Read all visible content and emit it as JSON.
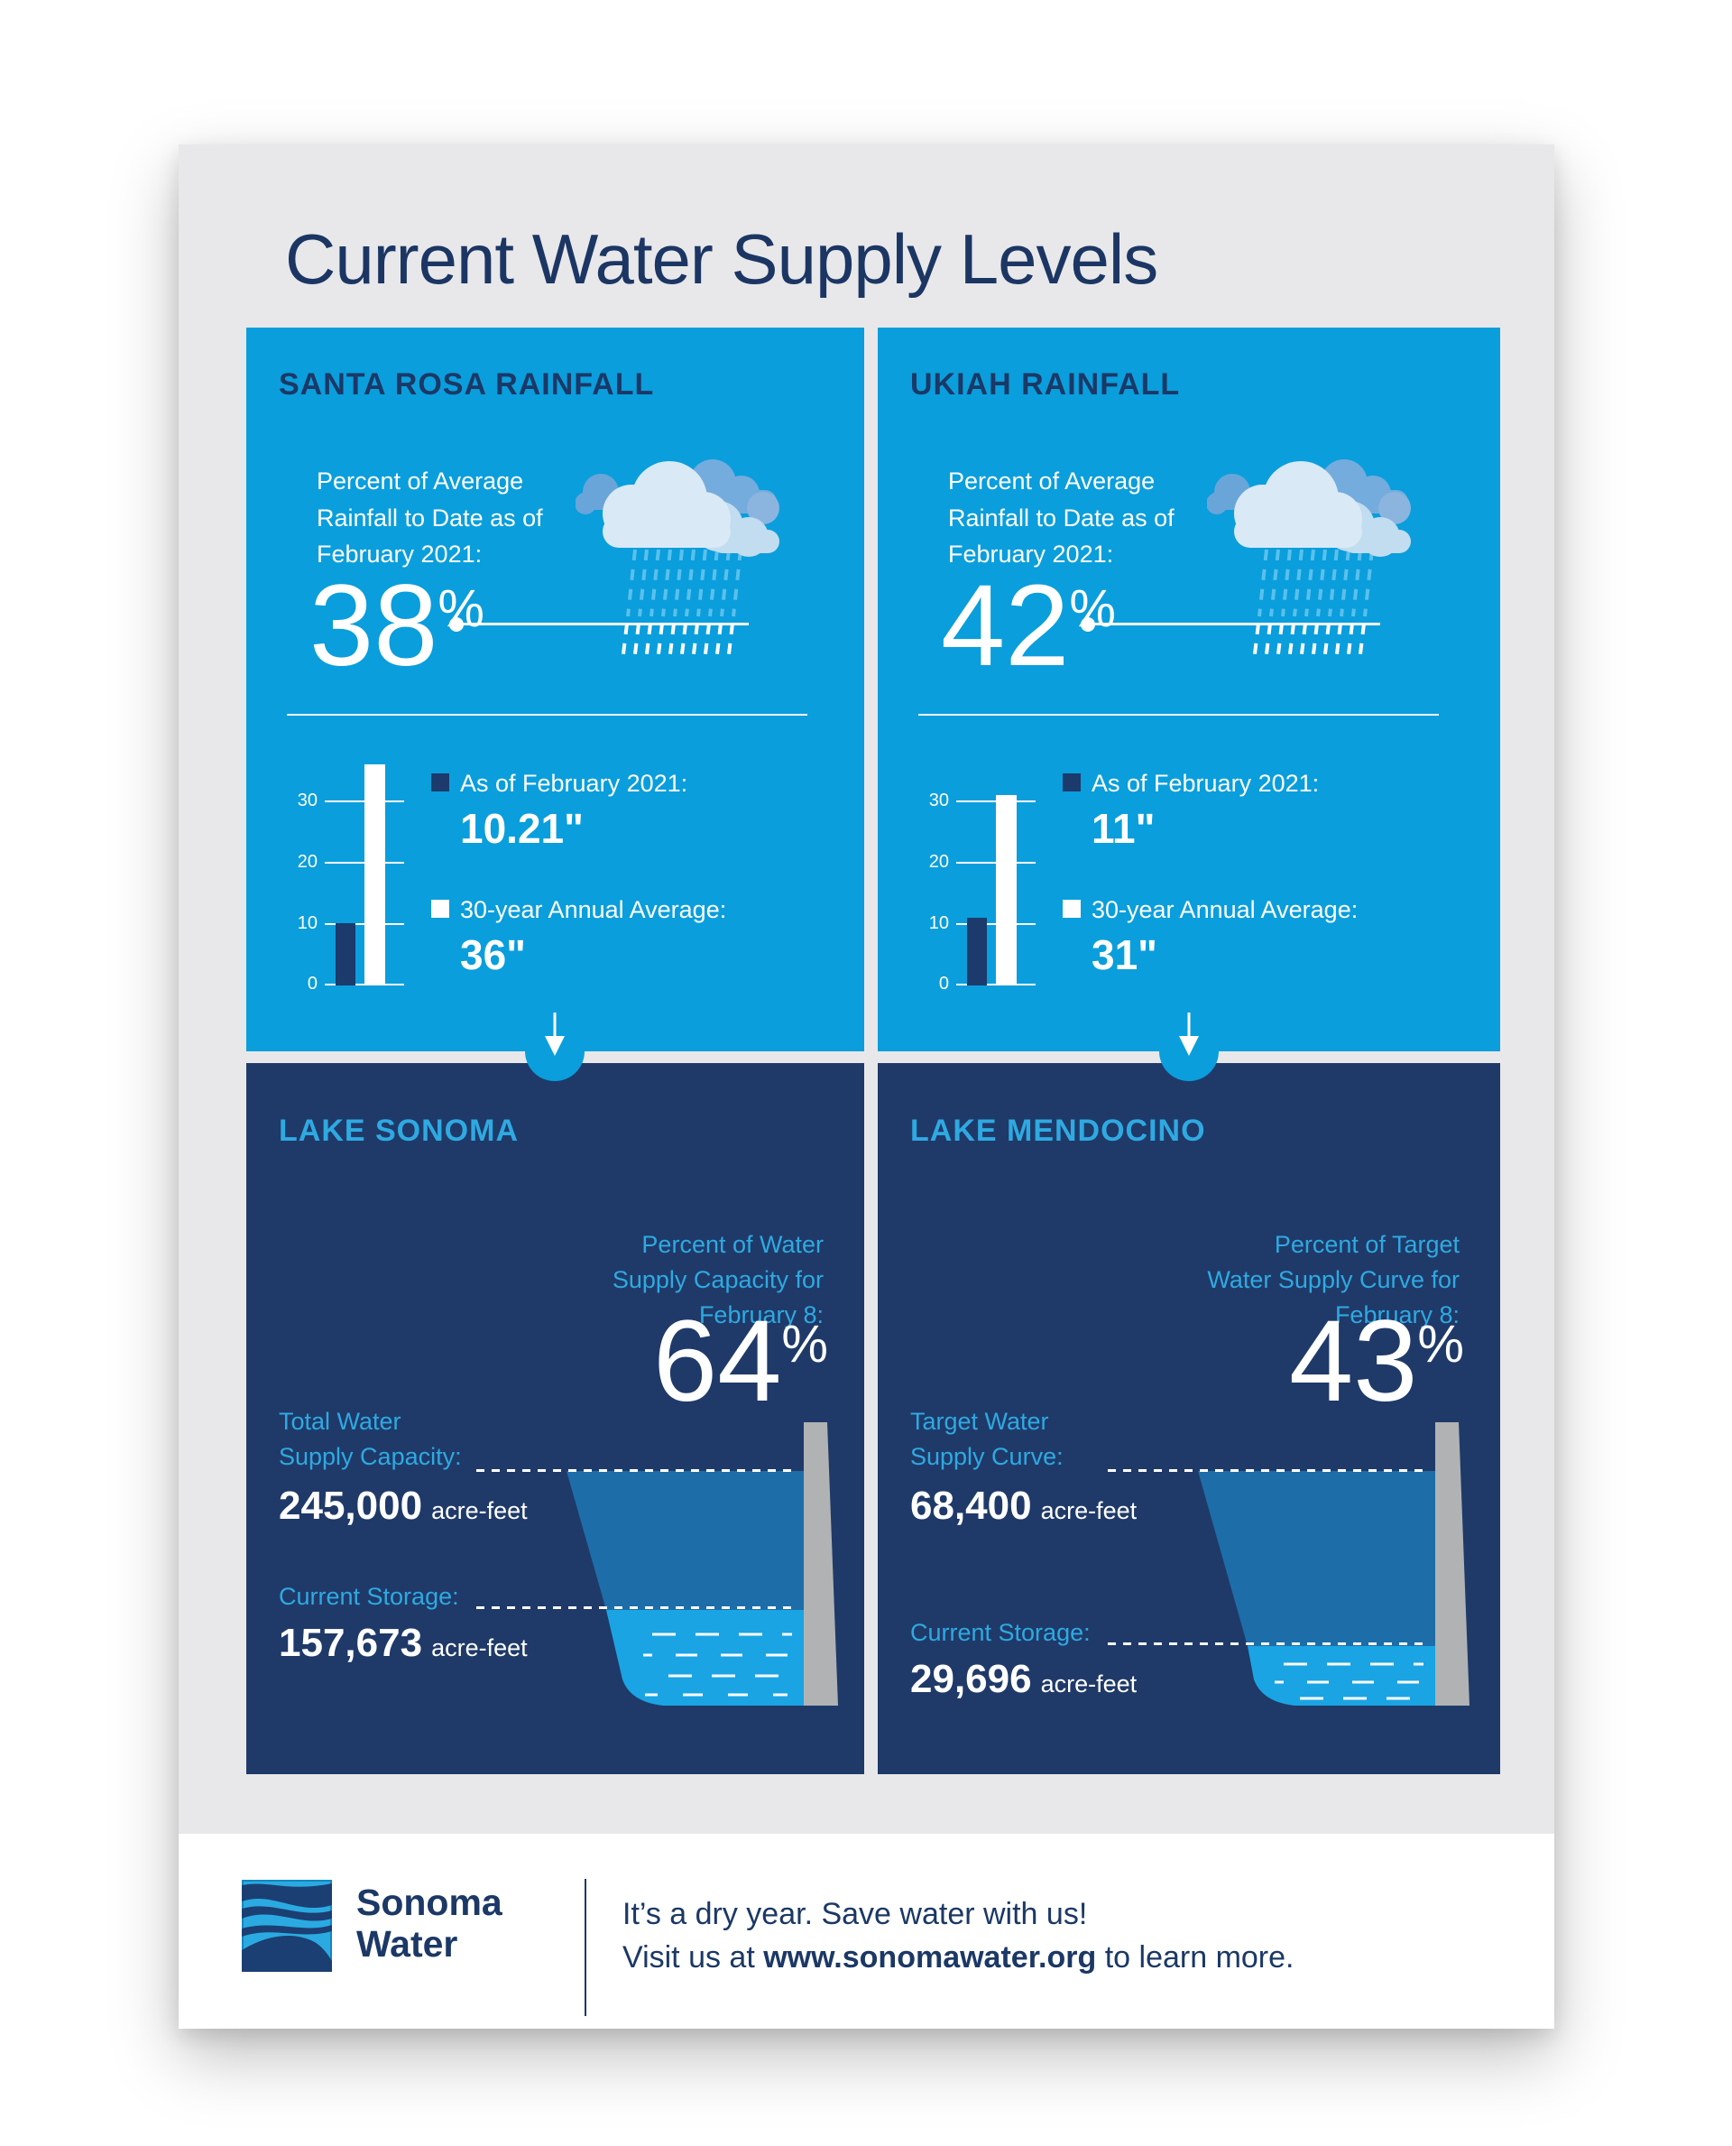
{
  "title": "Current Water Supply Levels",
  "colors": {
    "panel_blue": "#0A9EDC",
    "panel_navy": "#1F3A69",
    "accent_cyan": "#2FA9E1",
    "title_navy": "#1C3664",
    "bar_navy": "#1C3A6B",
    "water_blue": "#1AA4E3",
    "reservoir_fill": "#1D6DA9",
    "dam_gray": "#B0B2B4",
    "poster_gray": "#E8E8EA"
  },
  "santa_rosa": {
    "heading": "SANTA ROSA RAINFALL",
    "desc_lines": [
      "Percent of Average",
      "Rainfall to Date as of",
      "February 2021:"
    ],
    "percent_value": "38",
    "percent_sign": "%",
    "legend": [
      {
        "label": "As of February 2021:",
        "value": "10.21\""
      },
      {
        "label": "30-year Annual Average:",
        "value": "36\""
      }
    ]
  },
  "ukiah": {
    "heading": "UKIAH RAINFALL",
    "desc_lines": [
      "Percent of Average",
      "Rainfall to Date as of",
      "February 2021:"
    ],
    "percent_value": "42",
    "percent_sign": "%",
    "legend": [
      {
        "label": "As of February 2021:",
        "value": "11\""
      },
      {
        "label": "30-year Annual Average:",
        "value": "31\""
      }
    ]
  },
  "lake_sonoma": {
    "heading": "LAKE SONOMA",
    "desc_lines": [
      "Percent of Water",
      "Supply Capacity for",
      "February 8:"
    ],
    "percent_value": "64",
    "percent_sign": "%",
    "capacity_label_lines": [
      "Total Water",
      "Supply Capacity:"
    ],
    "capacity_value": "245,000",
    "capacity_unit": "acre-feet",
    "storage_label": "Current Storage:",
    "storage_value": "157,673",
    "storage_unit": "acre-feet"
  },
  "lake_mendocino": {
    "heading": "LAKE MENDOCINO",
    "desc_lines": [
      "Percent of Target",
      "Water Supply Curve for",
      "February 8:"
    ],
    "percent_value": "43",
    "percent_sign": "%",
    "capacity_label_lines": [
      "Target Water",
      "Supply Curve:"
    ],
    "capacity_value": "68,400",
    "capacity_unit": "acre-feet",
    "storage_label": "Current Storage:",
    "storage_value": "29,696",
    "storage_unit": "acre-feet"
  },
  "footer": {
    "logo_word1": "Sonoma",
    "logo_word2": "Water",
    "tagline_line1": "It’s a dry year. Save water with us!",
    "tagline_line2_prefix": "Visit us at ",
    "tagline_url": "www.sonomawater.org",
    "tagline_line2_suffix": " to learn more."
  },
  "chart_data": [
    {
      "type": "bar",
      "title": "Santa Rosa Rainfall",
      "ylabel": "inches",
      "categories": [
        "As of February 2021",
        "30-year Annual Average"
      ],
      "values": [
        10.21,
        36
      ],
      "yticks": [
        0,
        10,
        20,
        30
      ],
      "ylim": [
        0,
        36
      ],
      "bar_colors": [
        "#1C3A6B",
        "#FFFFFF"
      ],
      "grid": true,
      "percent_of_average_to_date": 38
    },
    {
      "type": "bar",
      "title": "Ukiah Rainfall",
      "ylabel": "inches",
      "categories": [
        "As of February 2021",
        "30-year Annual Average"
      ],
      "values": [
        11,
        31
      ],
      "yticks": [
        0,
        10,
        20,
        30
      ],
      "ylim": [
        0,
        36
      ],
      "bar_colors": [
        "#1C3A6B",
        "#FFFFFF"
      ],
      "grid": true,
      "percent_of_average_to_date": 42
    },
    {
      "type": "area",
      "title": "Lake Sonoma",
      "subtitle": "Percent of Water Supply Capacity for February 8",
      "percent_full": 64,
      "capacity_acre_feet": 245000,
      "current_storage_acre_feet": 157673,
      "unit": "acre-feet"
    },
    {
      "type": "area",
      "title": "Lake Mendocino",
      "subtitle": "Percent of Target Water Supply Curve for February 8",
      "percent_of_target": 43,
      "target_supply_acre_feet": 68400,
      "current_storage_acre_feet": 29696,
      "unit": "acre-feet"
    }
  ]
}
